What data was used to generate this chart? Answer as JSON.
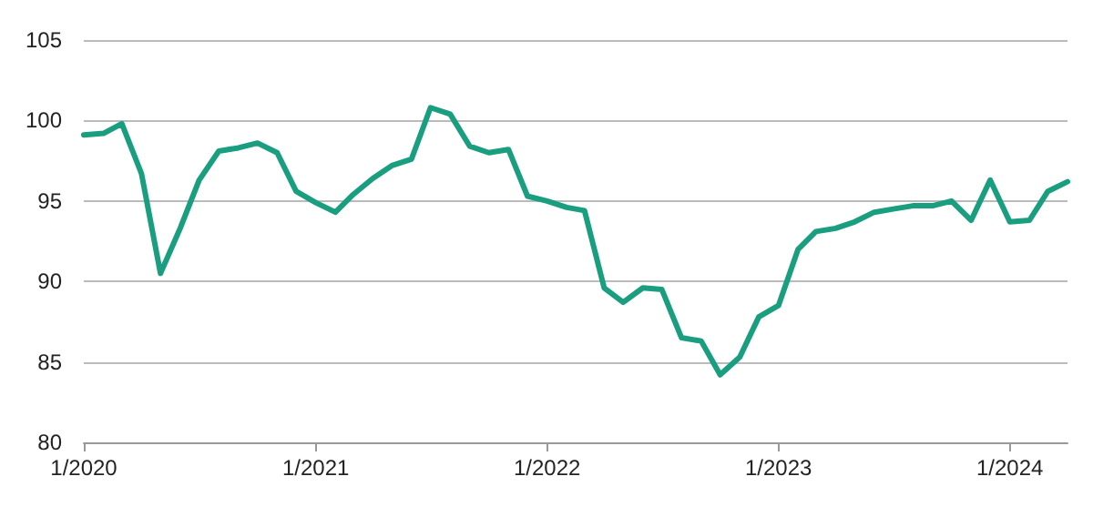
{
  "chart_data": {
    "type": "line",
    "x": [
      "2020-01",
      "2020-02",
      "2020-03",
      "2020-04",
      "2020-05",
      "2020-06",
      "2020-07",
      "2020-08",
      "2020-09",
      "2020-10",
      "2020-11",
      "2020-12",
      "2021-01",
      "2021-02",
      "2021-03",
      "2021-04",
      "2021-05",
      "2021-06",
      "2021-07",
      "2021-08",
      "2021-09",
      "2021-10",
      "2021-11",
      "2021-12",
      "2022-01",
      "2022-02",
      "2022-03",
      "2022-04",
      "2022-05",
      "2022-06",
      "2022-07",
      "2022-08",
      "2022-09",
      "2022-10",
      "2022-11",
      "2022-12",
      "2023-01",
      "2023-02",
      "2023-03",
      "2023-04",
      "2023-05",
      "2023-06",
      "2023-07",
      "2023-08",
      "2023-09",
      "2023-10",
      "2023-11",
      "2023-12",
      "2024-01",
      "2024-02",
      "2024-03",
      "2024-04"
    ],
    "series": [
      {
        "color": "#1a9e80",
        "values": [
          99.1,
          99.2,
          99.8,
          96.7,
          90.5,
          93.3,
          96.3,
          98.1,
          98.3,
          98.6,
          98.0,
          95.6,
          94.9,
          94.3,
          95.4,
          96.4,
          97.2,
          97.6,
          100.8,
          100.4,
          98.4,
          98.0,
          98.2,
          95.3,
          95.0,
          94.6,
          94.4,
          89.6,
          88.7,
          89.6,
          89.5,
          86.5,
          86.3,
          84.2,
          85.3,
          87.8,
          88.5,
          92.0,
          93.1,
          93.3,
          93.7,
          94.3,
          94.5,
          94.7,
          94.7,
          95.0,
          93.8,
          96.3,
          93.7,
          93.8,
          95.6,
          96.2
        ]
      }
    ],
    "xlim": [
      "2020-01",
      "2024-04"
    ],
    "xticks": [
      {
        "value": "2020-01",
        "label": "1/2020"
      },
      {
        "value": "2021-01",
        "label": "1/2021"
      },
      {
        "value": "2022-01",
        "label": "1/2022"
      },
      {
        "value": "2023-01",
        "label": "1/2023"
      },
      {
        "value": "2024-01",
        "label": "1/2024"
      }
    ],
    "ylim": [
      80,
      105
    ],
    "yticks": [
      80,
      85,
      90,
      95,
      100,
      105
    ],
    "grid": "y",
    "marker": "none",
    "line_style": "solid"
  }
}
